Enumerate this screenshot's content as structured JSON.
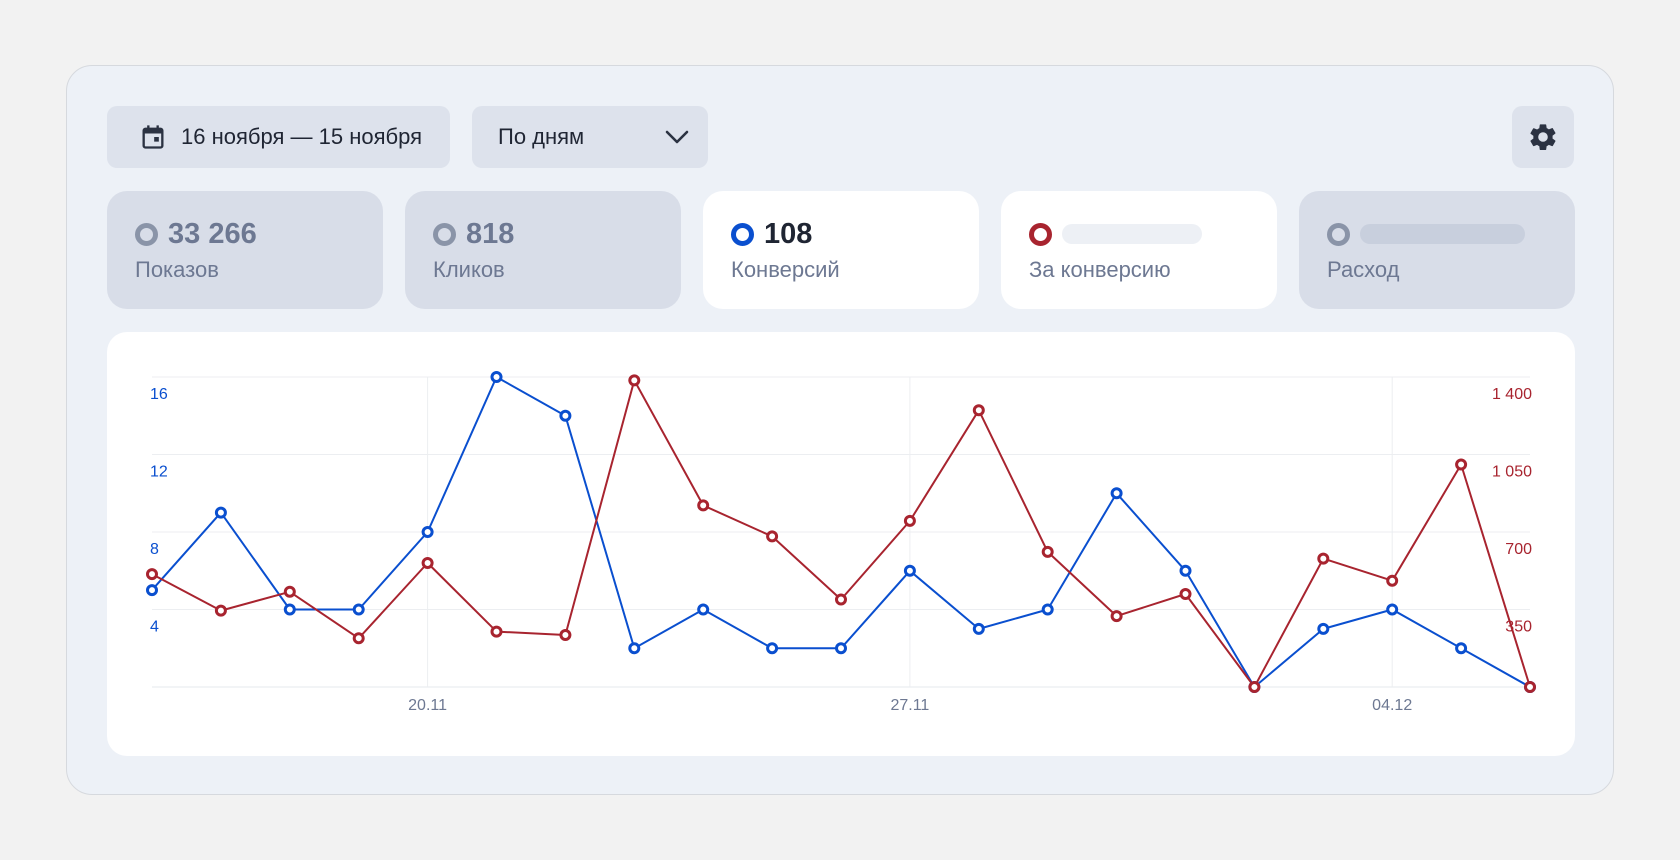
{
  "toolbar": {
    "date_range": "16 ноября — 15 ноября",
    "period": "По дням"
  },
  "metrics": [
    {
      "value": "33 266",
      "label": "Показов",
      "color": "#8a94a8",
      "active": false
    },
    {
      "value": "818",
      "label": "Кликов",
      "color": "#8a94a8",
      "active": false
    },
    {
      "value": "108",
      "label": "Конверсий",
      "color": "#0a4fcf",
      "active": true
    },
    {
      "value": "",
      "label": "За конверсию",
      "color": "#a8242f",
      "active": true
    },
    {
      "value": "",
      "label": "Расход",
      "color": "#8a94a8",
      "active": false
    }
  ],
  "chart_data": {
    "type": "line",
    "x_tick_labels": [
      "20.11",
      "27.11",
      "04.12"
    ],
    "x_tick_indices": [
      4,
      11,
      18
    ],
    "y_left": {
      "ticks": [
        4,
        8,
        12,
        16
      ],
      "tick_labels": [
        "4",
        "8",
        "12",
        "16"
      ],
      "lim": [
        0,
        16
      ],
      "color": "#0a4fcf"
    },
    "y_right": {
      "ticks": [
        350,
        700,
        1050,
        1400
      ],
      "tick_labels": [
        "350",
        "700",
        "1 050",
        "1 400"
      ],
      "lim": [
        0,
        1400
      ],
      "color": "#a8242f"
    },
    "grid": true,
    "series": [
      {
        "axis": "left",
        "color": "#0a4fcf",
        "values": [
          5,
          9,
          4,
          4,
          8,
          16,
          14,
          2,
          4,
          2,
          2,
          6,
          3,
          4,
          10,
          6,
          0,
          3,
          4,
          2,
          0
        ]
      },
      {
        "axis": "right",
        "color": "#a8242f",
        "values": [
          510,
          345,
          430,
          220,
          560,
          250,
          235,
          1385,
          820,
          680,
          395,
          750,
          1250,
          610,
          320,
          420,
          0,
          580,
          480,
          1005,
          0
        ]
      }
    ]
  }
}
